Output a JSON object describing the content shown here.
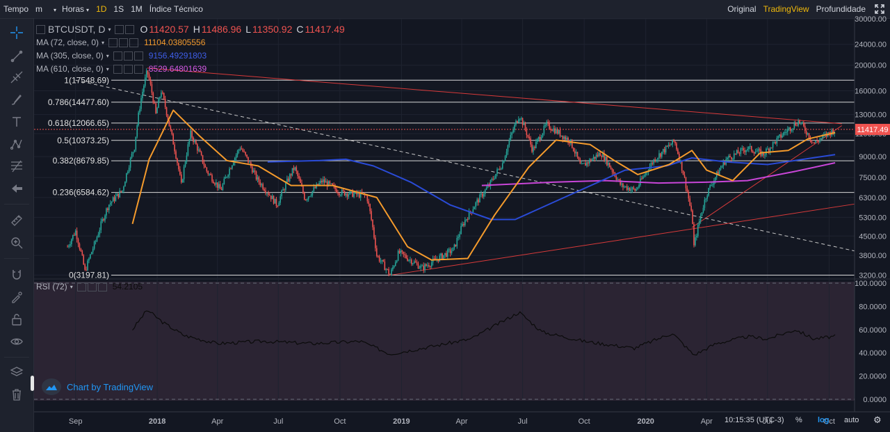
{
  "toolbar": {
    "time_label": "Tempo",
    "minute_label": "m",
    "hours_label": "Horas",
    "day_label": "1D",
    "week_label": "1S",
    "month_label": "1M",
    "indicators_label": "Índice Técnico",
    "original_label": "Original",
    "tradingview_label": "TradingView",
    "depth_label": "Profundidade"
  },
  "legend": {
    "symbol": "BTCUSDT, D",
    "open_label": "O",
    "open": "11420.57",
    "high_label": "H",
    "high": "11486.96",
    "low_label": "L",
    "low": "11350.92",
    "close_label": "C",
    "close": "11417.49",
    "ma72_name": "MA (72, close, 0)",
    "ma72_value": "11104.03805556",
    "ma305_name": "MA (305, close, 0)",
    "ma305_value": "9156.49291803",
    "ma610_name": "MA (610, close, 0)",
    "ma610_value": "8529.64801639",
    "rsi_name": "RSI (72)",
    "rsi_value": "54.2105"
  },
  "colors": {
    "up": "#26a69a",
    "down": "#ef5350",
    "ma72": "#f59b2c",
    "ma305": "#2a4bd7",
    "ma610": "#c946d8",
    "trend": "#d93a3a",
    "rsi_line": "#0b0b0b",
    "rsi_bg": "#2b2433",
    "accent": "#f0b90b"
  },
  "brand": {
    "label": "Chart by TradingView",
    "icon": "tradingview-cloud-icon"
  },
  "status": {
    "time": "10:15:35 (UTC-3)",
    "percent": "%",
    "log": "log",
    "auto": "auto"
  },
  "chart_data": [
    {
      "type": "candlestick",
      "symbol": "BTCUSDT",
      "timeframe": "D",
      "scale": "log",
      "ylim": [
        3150,
        30000
      ],
      "x_ticks": [
        "Sep",
        "2018",
        "Apr",
        "Jul",
        "Oct",
        "2019",
        "Apr",
        "Jul",
        "Oct",
        "2020",
        "Apr",
        "Jul",
        "Oct"
      ],
      "y_ticks": [
        "30000.00",
        "24000.00",
        "20000.00",
        "16000.00",
        "13000.00",
        "11000.00",
        "9000.00",
        "7500.00",
        "6300.00",
        "5300.00",
        "4500.00",
        "3800.00",
        "3200.00"
      ],
      "last_price": "11417.49",
      "fib_levels": [
        {
          "label": "1(17548.69)",
          "price": 17548.69
        },
        {
          "label": "0.786(14477.60)",
          "price": 14477.6
        },
        {
          "label": "0.618(12066.65)",
          "price": 12066.65
        },
        {
          "label": "0.5(10373.25)",
          "price": 10373.25
        },
        {
          "label": "0.382(8679.85)",
          "price": 8679.85
        },
        {
          "label": "0.236(6584.62)",
          "price": 6584.62
        },
        {
          "label": "0(3197.81)",
          "price": 3197.81
        }
      ],
      "price_path": [
        [
          "2017-08-20",
          4100
        ],
        [
          "2017-09-01",
          4700
        ],
        [
          "2017-09-15",
          3300
        ],
        [
          "2017-10-01",
          4300
        ],
        [
          "2017-10-20",
          5900
        ],
        [
          "2017-11-10",
          6700
        ],
        [
          "2017-11-28",
          9800
        ],
        [
          "2017-12-08",
          15000
        ],
        [
          "2017-12-17",
          19000
        ],
        [
          "2017-12-30",
          13000
        ],
        [
          "2018-01-07",
          16000
        ],
        [
          "2018-01-20",
          11500
        ],
        [
          "2018-02-06",
          7000
        ],
        [
          "2018-02-20",
          11000
        ],
        [
          "2018-03-15",
          8000
        ],
        [
          "2018-04-06",
          6700
        ],
        [
          "2018-05-05",
          9800
        ],
        [
          "2018-05-30",
          7400
        ],
        [
          "2018-06-29",
          5900
        ],
        [
          "2018-07-25",
          8200
        ],
        [
          "2018-08-10",
          6200
        ],
        [
          "2018-09-05",
          7300
        ],
        [
          "2018-10-01",
          6600
        ],
        [
          "2018-11-10",
          6400
        ],
        [
          "2018-11-25",
          3800
        ],
        [
          "2018-12-15",
          3200
        ],
        [
          "2018-12-28",
          3900
        ],
        [
          "2019-02-01",
          3400
        ],
        [
          "2019-03-20",
          4000
        ],
        [
          "2019-04-03",
          5000
        ],
        [
          "2019-05-12",
          7000
        ],
        [
          "2019-06-01",
          8500
        ],
        [
          "2019-06-26",
          13000
        ],
        [
          "2019-07-16",
          9500
        ],
        [
          "2019-08-06",
          11900
        ],
        [
          "2019-09-10",
          10300
        ],
        [
          "2019-09-26",
          8200
        ],
        [
          "2019-10-26",
          9300
        ],
        [
          "2019-11-25",
          7000
        ],
        [
          "2019-12-17",
          6700
        ],
        [
          "2020-01-14",
          8800
        ],
        [
          "2020-02-13",
          10300
        ],
        [
          "2020-03-12",
          4900
        ],
        [
          "2020-03-13",
          4100
        ],
        [
          "2020-04-01",
          6500
        ],
        [
          "2020-04-30",
          8800
        ],
        [
          "2020-06-01",
          9700
        ],
        [
          "2020-06-25",
          9200
        ],
        [
          "2020-07-28",
          11200
        ],
        [
          "2020-08-17",
          12300
        ],
        [
          "2020-09-08",
          10100
        ],
        [
          "2020-10-10",
          11417.49
        ]
      ],
      "ma72_path": [
        [
          "2017-11-25",
          5000
        ],
        [
          "2017-12-20",
          8800
        ],
        [
          "2018-01-25",
          13500
        ],
        [
          "2018-03-05",
          10800
        ],
        [
          "2018-04-15",
          8700
        ],
        [
          "2018-06-01",
          8300
        ],
        [
          "2018-07-20",
          7000
        ],
        [
          "2018-09-20",
          7000
        ],
        [
          "2018-11-25",
          6300
        ],
        [
          "2019-01-10",
          4100
        ],
        [
          "2019-02-15",
          3650
        ],
        [
          "2019-04-10",
          3700
        ],
        [
          "2019-05-20",
          5400
        ],
        [
          "2019-07-10",
          8200
        ],
        [
          "2019-08-20",
          10400
        ],
        [
          "2019-10-10",
          10000
        ],
        [
          "2019-11-15",
          8700
        ],
        [
          "2019-12-20",
          7700
        ],
        [
          "2020-02-05",
          8400
        ],
        [
          "2020-03-10",
          9500
        ],
        [
          "2020-04-01",
          8000
        ],
        [
          "2020-05-10",
          7300
        ],
        [
          "2020-06-20",
          9300
        ],
        [
          "2020-08-01",
          9500
        ],
        [
          "2020-08-30",
          10500
        ],
        [
          "2020-10-10",
          11104.04
        ]
      ],
      "ma305_path": [
        [
          "2018-06-15",
          8600
        ],
        [
          "2018-09-01",
          8700
        ],
        [
          "2018-10-10",
          8800
        ],
        [
          "2018-11-20",
          8300
        ],
        [
          "2019-01-15",
          7200
        ],
        [
          "2019-03-15",
          5900
        ],
        [
          "2019-05-15",
          5200
        ],
        [
          "2019-06-20",
          5200
        ],
        [
          "2019-09-01",
          6300
        ],
        [
          "2019-12-01",
          8000
        ],
        [
          "2020-02-01",
          8300
        ],
        [
          "2020-03-10",
          8900
        ],
        [
          "2020-05-01",
          8600
        ],
        [
          "2020-07-01",
          8400
        ],
        [
          "2020-10-10",
          9156.49
        ]
      ],
      "ma610_path": [
        [
          "2019-05-01",
          7000
        ],
        [
          "2019-08-15",
          7200
        ],
        [
          "2019-11-01",
          7300
        ],
        [
          "2020-01-20",
          7150
        ],
        [
          "2020-04-01",
          7200
        ],
        [
          "2020-06-01",
          7300
        ],
        [
          "2020-08-10",
          7900
        ],
        [
          "2020-10-10",
          8529.65
        ]
      ]
    },
    {
      "type": "line",
      "name": "RSI (72)",
      "ylim": [
        0,
        100
      ],
      "y_ticks": [
        "100.0000",
        "80.0000",
        "60.0000",
        "40.0000",
        "20.0000",
        "0.0000"
      ],
      "last_value": "54.2105",
      "values": [
        [
          "2017-11-25",
          60
        ],
        [
          "2017-12-17",
          77
        ],
        [
          "2018-01-10",
          66
        ],
        [
          "2018-02-10",
          55
        ],
        [
          "2018-04-01",
          48
        ],
        [
          "2018-06-10",
          50
        ],
        [
          "2018-08-20",
          48
        ],
        [
          "2018-11-01",
          50
        ],
        [
          "2018-12-15",
          39
        ],
        [
          "2019-02-01",
          44
        ],
        [
          "2019-04-15",
          52
        ],
        [
          "2019-06-26",
          75
        ],
        [
          "2019-07-30",
          58
        ],
        [
          "2019-10-01",
          50
        ],
        [
          "2019-12-15",
          44
        ],
        [
          "2020-02-10",
          57
        ],
        [
          "2020-03-13",
          38
        ],
        [
          "2020-04-15",
          48
        ],
        [
          "2020-06-01",
          54
        ],
        [
          "2020-07-01",
          52
        ],
        [
          "2020-08-12",
          60
        ],
        [
          "2020-09-08",
          52
        ],
        [
          "2020-10-10",
          54.2105
        ]
      ]
    }
  ]
}
